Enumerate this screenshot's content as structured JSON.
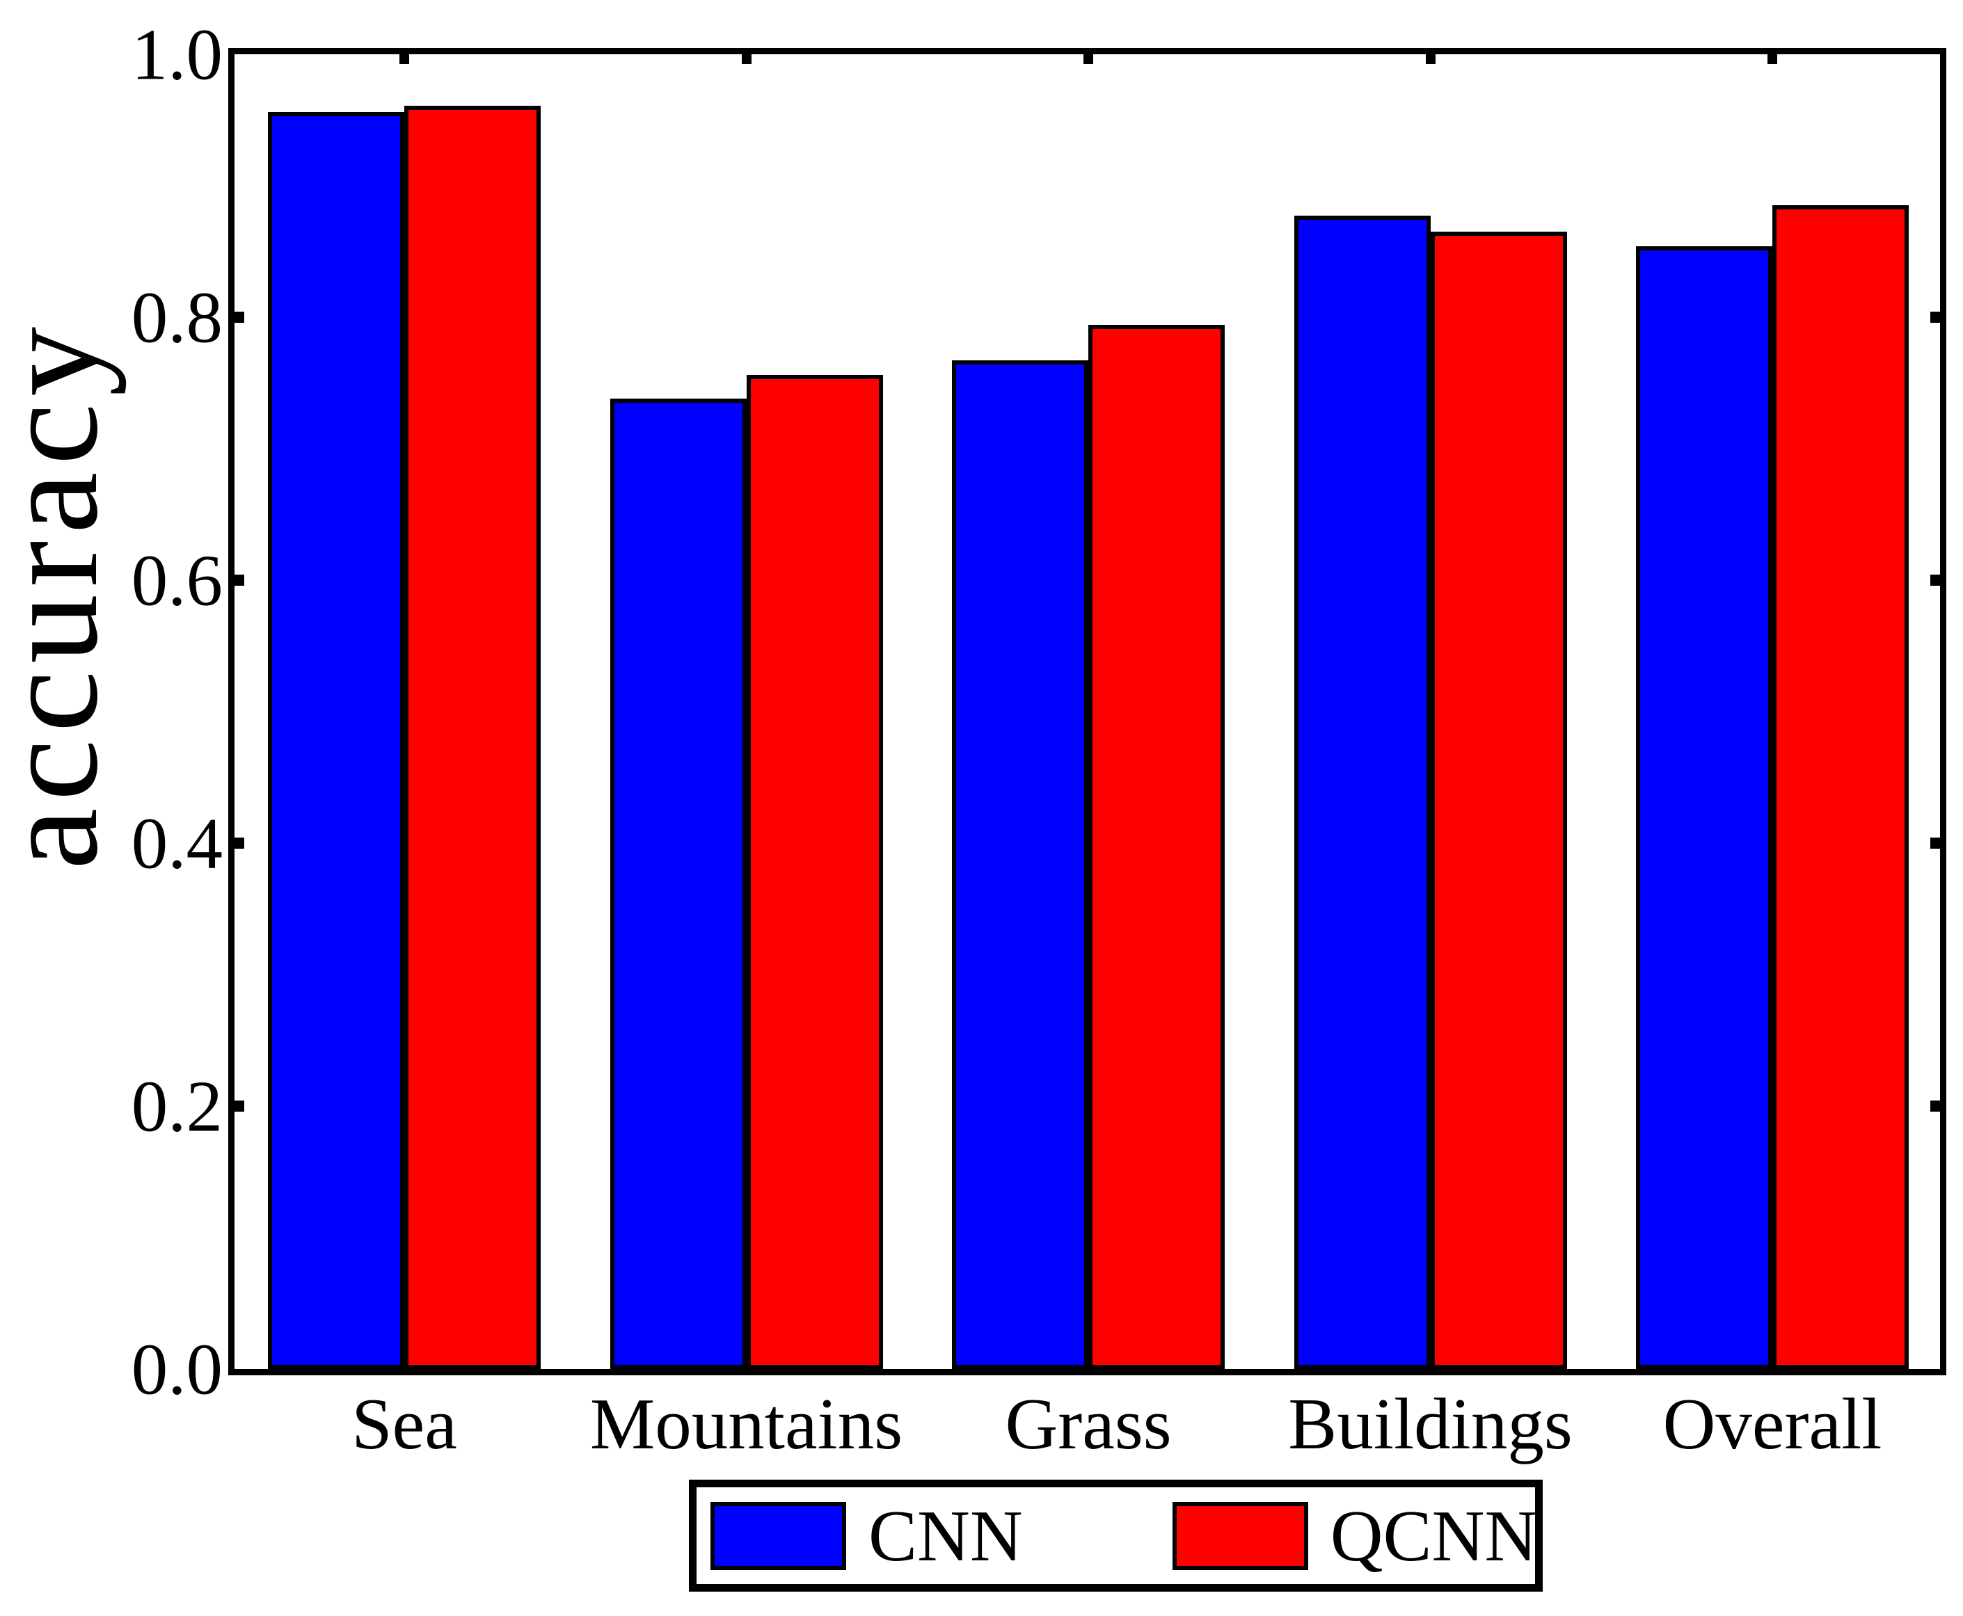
{
  "figure": {
    "background": "#ffffff"
  },
  "chart_data": {
    "type": "bar",
    "title": "",
    "xlabel": "",
    "ylabel": "accuracy",
    "categories": [
      "Sea",
      "Mountains",
      "Grass",
      "Buildings",
      "Overall"
    ],
    "series": [
      {
        "name": "CNN",
        "color": "#0000ff",
        "values": [
          0.956,
          0.738,
          0.767,
          0.877,
          0.854
        ]
      },
      {
        "name": "QCNN",
        "color": "#ff0000",
        "values": [
          0.961,
          0.756,
          0.794,
          0.865,
          0.885
        ]
      }
    ],
    "ylim": [
      0.0,
      1.0
    ],
    "yticks": {
      "values": [
        0.0,
        0.2,
        0.4,
        0.6,
        0.8,
        1.0
      ],
      "labels": [
        "0.0",
        "0.2",
        "0.4",
        "0.6",
        "0.8",
        "1.0"
      ]
    },
    "grid": false,
    "bar_edge_color": "#000000",
    "axis_color": "#000000",
    "legend": {
      "position": "below-axes",
      "entries": [
        "CNN",
        "QCNN"
      ]
    }
  }
}
